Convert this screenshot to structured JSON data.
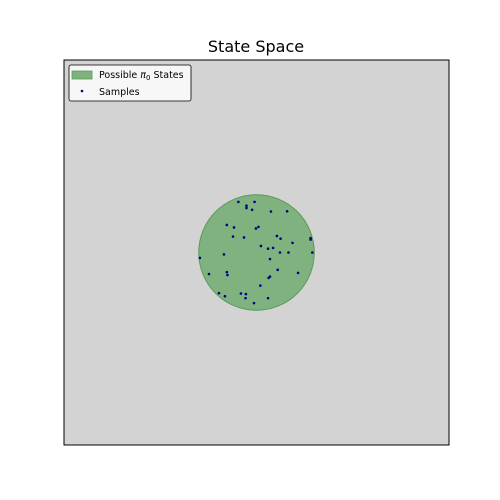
{
  "chart_data": {
    "type": "scatter",
    "title": "State Space",
    "xlabel": "",
    "ylabel": "",
    "xlim": [
      -1,
      1
    ],
    "ylim": [
      -1,
      1
    ],
    "grid": false,
    "axis_ticks": false,
    "background_color": "#d3d3d3",
    "legend": {
      "placement": "top-left",
      "entries": [
        {
          "label_prefix": "Possible ",
          "label_symbol": "π",
          "label_subscript": "0",
          "label_suffix": " States",
          "kind": "region",
          "color": "#7fb27f"
        },
        {
          "label": "Samples",
          "kind": "points",
          "color": "#000080"
        }
      ]
    },
    "region": {
      "name": "Possible π0 States",
      "shape": "circle",
      "center": [
        0.0,
        0.0
      ],
      "radius": 0.3,
      "fill_color": "#7fb27f",
      "edge_color": "#5a9a5a"
    },
    "series": [
      {
        "name": "Samples",
        "color": "#000080",
        "points": [
          [
            -0.094,
            0.263
          ],
          [
            -0.01,
            0.263
          ],
          [
            -0.052,
            0.243
          ],
          [
            -0.023,
            0.222
          ],
          [
            -0.052,
            0.231
          ],
          [
            0.075,
            0.213
          ],
          [
            0.159,
            0.214
          ],
          [
            -0.117,
            0.13
          ],
          [
            -0.154,
            0.143
          ],
          [
            0.01,
            0.133
          ],
          [
            -0.003,
            0.125
          ],
          [
            -0.065,
            0.078
          ],
          [
            -0.122,
            0.083
          ],
          [
            0.106,
            0.086
          ],
          [
            0.125,
            0.072
          ],
          [
            0.281,
            0.075
          ],
          [
            0.281,
            0.067
          ],
          [
            0.187,
            0.05
          ],
          [
            0.023,
            0.034
          ],
          [
            0.06,
            0.02
          ],
          [
            0.086,
            0.024
          ],
          [
            -0.169,
            -0.01
          ],
          [
            0.122,
            0.0
          ],
          [
            0.166,
            0.0
          ],
          [
            0.29,
            0.0
          ],
          [
            0.07,
            -0.034
          ],
          [
            -0.294,
            -0.028
          ],
          [
            -0.247,
            -0.112
          ],
          [
            -0.154,
            -0.102
          ],
          [
            -0.151,
            -0.117
          ],
          [
            0.11,
            -0.09
          ],
          [
            0.216,
            -0.106
          ],
          [
            0.07,
            -0.125
          ],
          [
            0.063,
            -0.132
          ],
          [
            0.02,
            -0.172
          ],
          [
            -0.195,
            -0.211
          ],
          [
            -0.164,
            -0.227
          ],
          [
            -0.081,
            -0.213
          ],
          [
            -0.055,
            -0.216
          ],
          [
            -0.057,
            -0.237
          ],
          [
            0.06,
            -0.237
          ],
          [
            -0.013,
            -0.263
          ]
        ]
      }
    ]
  }
}
